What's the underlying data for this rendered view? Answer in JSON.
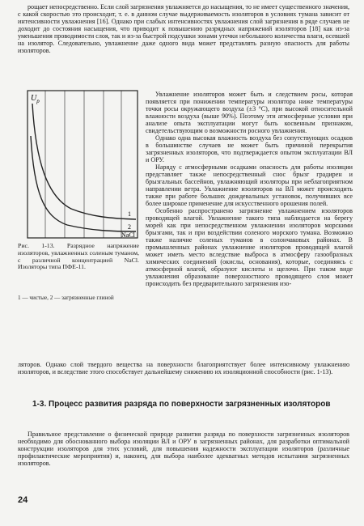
{
  "top_paragraph": "рощает непосредственно. Если слой загрязнения увлажняется до насыщения, то не имеет существенного значения, с какой скоростью это происходит, т. е. в данном случае выдерживаемость изоляторов в условиях тумана зависит от интенсивности увлажнения [16]. Однако при слабых интенсивностях увлажнения слой загрязнения в ряде случаев не доходит до состояния насыщения, что приводит к повышению разрядных напряжений изоляторов [18] как из-за уменьшения проводимости слоя, так и из-за быстрой подсушки зонами утечки небольшого количества влаги, осевшей на изолятор. Следовательно, увлажнение даже одного вида может представлять разную опасность для работы изоляторов.",
  "figure": {
    "y_label": "U",
    "y_label_sub": "р",
    "curve_1": "1",
    "curve_2": "2",
    "x_label": "NaCl",
    "caption": "Рис. 1-13. Разрядное напряжение изоляторов, увлажненных соленым туманом, с различной концентрацией NaCl. Изоляторы типа ПФЕ-11.",
    "legend": "1 — чистые, 2 — загрязненные глиной"
  },
  "column_paragraphs": [
    "Увлажнение изоляторов может быть и следствием росы, которая появляется при понижении температуры изолятора ниже температуры точки росы окружающего воздуха (±3 °С), при высокой относительной влажности воздуха (выше 90%). Поэтому эти атмосферные условия при анализе опыта эксплуатации могут быть косвенным признаком, свидетельствующим о возможности росного увлажнения.",
    "Однако одна высокая влажность воздуха без сопутствующих осадков в большинстве случаев не может быть причиной перекрытия загрязненных изоляторов, что подтверждается опытом эксплуатации ВЛ и ОРУ.",
    "Наряду с атмосферными осадками опасность для работы изоляции представляет также непосредственный снос брызг градирен и брызгальных бассейнов, увлажняющий изоляторы при неблагоприятном направлении ветра. Увлажнение изоляторов на ВЛ может происходить также при работе больших дождевальных установок, получивших все более широкое применение для искусственного орошения полей.",
    "Особенно распространено загрязнение увлажнением изоляторов проводящей влагой. Увлажнение такого типа наблюдается на берегу морей как при непосредственном увлажнении изоляторов морскими брызгами, так и при воздействии соленого морского тумана. Возможно также наличие соленых туманов в солончаковых районах. В промышленных районах увлажнение изоляторов проводящей влагой может иметь место вследствие выброса в атмосферу газообразных химических соединений (окислы, основания), которые, соединяясь с атмосферной влагой, образуют кислоты и щелочи. При таком виде увлажнения образование поверхностного проводящего слоя может происходить без предварительного загрязнения изо-"
  ],
  "continuation": "ляторов. Однако слой твердого вещества на поверхности благоприятствует более интенсивному увлажнению изоляторов, и вследствие этого способствует дальнейшему снижению их изоляционной способности (рис. 1-13).",
  "section_heading": "1-3. Процесс развития разряда по поверхности загрязненных изоляторов",
  "bottom_paragraph": "Правильное представление о физической природе развития разряда по поверхности загрязненных изоляторов необходимо для обоснованного выбора изоляции ВЛ и ОРУ в загрязненных районах, для разработки оптимальной конструкции изоляторов для этих условий, для повышения надежности эксплуатации изоляторов (различные профилактические мероприятия) и, наконец, для выбора наиболее адекватных методов испытания загрязненных изоляторов.",
  "page_number": "24"
}
